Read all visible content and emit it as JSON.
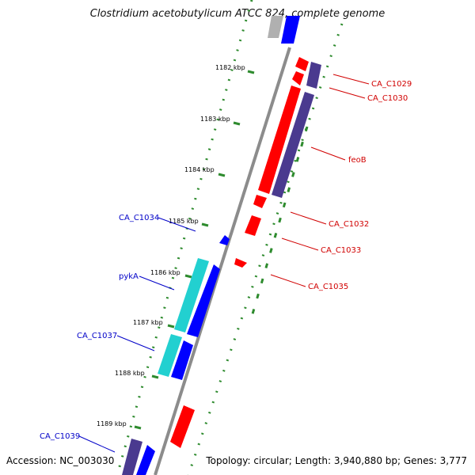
{
  "title": "Clostridium acetobutylicum ATCC 824, complete genome",
  "accession_text": "Accession: NC_003030",
  "topology_text": "Topology: circular; Length: 3,940,880 bp; Genes: 3,777",
  "colors": {
    "backbone": "#8c8c8c",
    "tick_green": "#2e8b2e",
    "label_red": "#d10000",
    "label_blue": "#0000c8",
    "gene_red": "#ff0000",
    "gene_blue": "#0000ff",
    "gene_navy": "#4a3a8f",
    "gene_cyan": "#22d0d0",
    "gene_gray": "#b0b0b0"
  },
  "ticks": [
    "1182 kbp",
    "1183 kbp",
    "1184 kbp",
    "1185 kbp",
    "1186 kbp",
    "1187 kbp",
    "1188 kbp",
    "1189 kbp"
  ],
  "gene_labels": [
    {
      "text": "CA_C1029",
      "side": "right"
    },
    {
      "text": "CA_C1030",
      "side": "right"
    },
    {
      "text": "feoB",
      "side": "right"
    },
    {
      "text": "CA_C1032",
      "side": "right"
    },
    {
      "text": "CA_C1033",
      "side": "right"
    },
    {
      "text": "CA_C1035",
      "side": "right"
    },
    {
      "text": "CA_C1034",
      "side": "left"
    },
    {
      "text": "pykA",
      "side": "left"
    },
    {
      "text": "CA_C1037",
      "side": "left"
    },
    {
      "text": "CA_C1039",
      "side": "left"
    }
  ]
}
